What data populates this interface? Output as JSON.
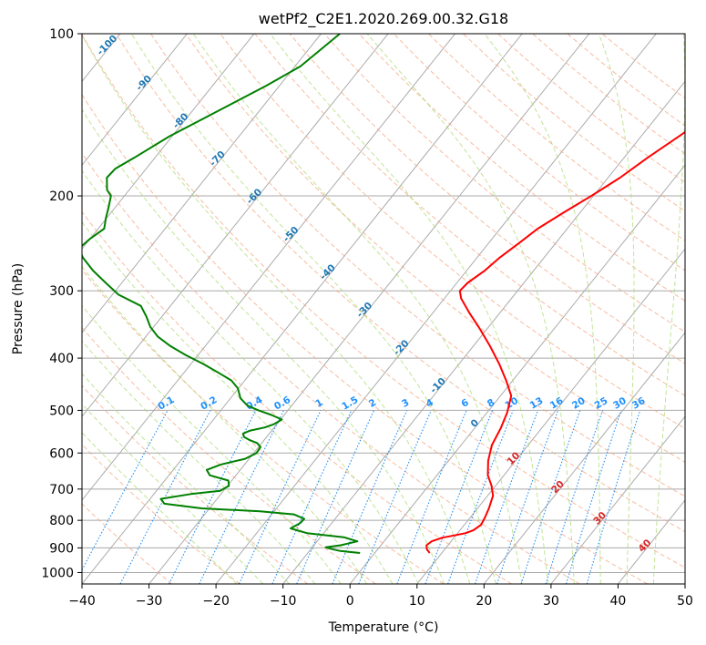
{
  "chart_data": {
    "type": "line",
    "title": "wetPf2_C2E1.2020.269.00.32.G18",
    "xlabel": "Temperature (°C)",
    "ylabel": "Pressure (hPa)",
    "xlim": [
      -40,
      50
    ],
    "ylim": [
      1050,
      100
    ],
    "y_scale": "log",
    "x_ticks": [
      -40,
      -30,
      -20,
      -10,
      0,
      10,
      20,
      30,
      40,
      50
    ],
    "y_ticks": [
      100,
      200,
      300,
      400,
      500,
      600,
      700,
      800,
      900,
      1000
    ],
    "grid": true,
    "skew": true,
    "colors": {
      "temperature": "#ff0000",
      "dewpoint": "#008000",
      "isotherm": "#a9a9a9",
      "dry_adiabat": "#f4a582",
      "moist_adiabat": "#a6d96a",
      "mixing_ratio": "#1f8ef5",
      "annotation_isotherm": "#1f77b4",
      "annotation_adiabat": "#d62728",
      "annotation_mixing": "#1e90ff"
    },
    "series": [
      {
        "key": "temperature",
        "p": [
          920,
          905,
          890,
          875,
          862,
          852,
          845,
          835,
          815,
          790,
          760,
          720,
          690,
          660,
          620,
          580,
          540,
          505,
          470,
          440,
          410,
          380,
          350,
          330,
          310,
          300,
          290,
          275,
          260,
          245,
          230,
          215,
          200,
          185,
          170,
          150,
          130,
          115,
          105,
          100
        ],
        "t": [
          8.2,
          7.3,
          6.8,
          7.1,
          8.2,
          10.0,
          11.2,
          12.0,
          12.5,
          12.2,
          11.7,
          10.8,
          9.4,
          7.6,
          5.9,
          4.6,
          3.9,
          3.0,
          1.6,
          -1.0,
          -4.0,
          -7.5,
          -11.5,
          -14.5,
          -17.5,
          -18.6,
          -18.4,
          -17.3,
          -16.6,
          -15.5,
          -14.4,
          -12.5,
          -10.3,
          -8.2,
          -6.5,
          -3.6,
          0.0,
          2.8,
          4.6,
          6.0
        ]
      },
      {
        "key": "dewpoint",
        "p": [
          920,
          912,
          905,
          898,
          890,
          875,
          860,
          845,
          828,
          810,
          795,
          780,
          770,
          760,
          745,
          730,
          715,
          705,
          690,
          675,
          660,
          645,
          630,
          615,
          600,
          585,
          575,
          568,
          560,
          552,
          545,
          538,
          530,
          520,
          510,
          500,
          490,
          475,
          455,
          440,
          425,
          410,
          395,
          380,
          365,
          350,
          335,
          320,
          305,
          290,
          275,
          260,
          250,
          240,
          230,
          220,
          210,
          200,
          195,
          185,
          178,
          170,
          155,
          140,
          125,
          115,
          100
        ],
        "t": [
          -2.2,
          -5.4,
          -6.8,
          -8.0,
          -6.0,
          -4.0,
          -6.5,
          -12.5,
          -15.5,
          -14.7,
          -14.6,
          -16.7,
          -22.1,
          -31.2,
          -37.3,
          -38.4,
          -34.5,
          -30.5,
          -29.8,
          -30.5,
          -33.9,
          -35.0,
          -33.5,
          -30.6,
          -29.6,
          -29.7,
          -30.7,
          -32.1,
          -33.4,
          -33.9,
          -33.2,
          -31.4,
          -30.4,
          -29.8,
          -31.9,
          -34.4,
          -36.6,
          -38.5,
          -40.1,
          -42.0,
          -45.0,
          -48.2,
          -51.8,
          -55.2,
          -58.2,
          -60.5,
          -62.3,
          -64.4,
          -69.1,
          -72.4,
          -75.8,
          -78.9,
          -80.5,
          -80.0,
          -79.1,
          -80.1,
          -81.0,
          -82.0,
          -83.3,
          -84.8,
          -84.6,
          -83.1,
          -80.4,
          -76.4,
          -72.0,
          -69.2,
          -67.2
        ]
      }
    ],
    "isotherm_labels": [
      "-100",
      "-90",
      "-80",
      "-70",
      "-60",
      "-50",
      "-40",
      "-30",
      "-20",
      "-10",
      "0"
    ],
    "dry_adiabat_labels": [
      "10",
      "20",
      "30",
      "40"
    ],
    "mixing_ratio_labels": [
      "0.1",
      "0.2",
      "0.4",
      "0.6",
      "1",
      "1.5",
      "2",
      "3",
      "4",
      "6",
      "8",
      "10",
      "13",
      "16",
      "20",
      "25",
      "30",
      "36"
    ]
  }
}
